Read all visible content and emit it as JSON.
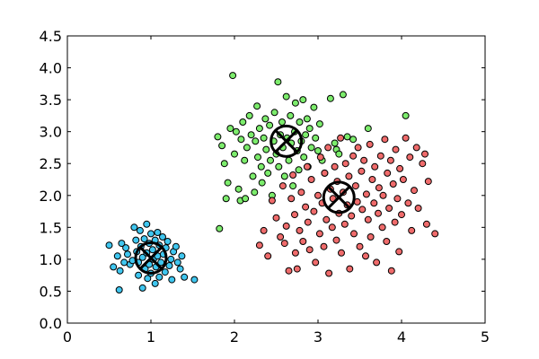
{
  "chart_data": {
    "type": "scatter",
    "title": "",
    "xlabel": "",
    "ylabel": "",
    "xlim": [
      0,
      5
    ],
    "ylim": [
      0,
      4.5
    ],
    "xticks": [
      0,
      1,
      2,
      3,
      4,
      5
    ],
    "xtick_labels": [
      "0",
      "1",
      "2",
      "3",
      "4",
      "5"
    ],
    "yticks": [
      0,
      0.5,
      1,
      1.5,
      2,
      2.5,
      3,
      3.5,
      4,
      4.5
    ],
    "ytick_labels": [
      "0.0",
      "0.5",
      "1.0",
      "1.5",
      "2.0",
      "2.5",
      "3.0",
      "3.5",
      "4.0",
      "4.5"
    ],
    "grid": false,
    "legend": false,
    "series": [
      {
        "color": "#3fc6ef",
        "centroid": [
          1.0,
          1.02
        ],
        "points": [
          [
            0.5,
            1.22
          ],
          [
            0.55,
            0.88
          ],
          [
            0.6,
            1.05
          ],
          [
            0.62,
            0.52
          ],
          [
            0.63,
            0.82
          ],
          [
            0.65,
            1.25
          ],
          [
            0.68,
            0.95
          ],
          [
            0.7,
            1.18
          ],
          [
            0.72,
            1.08
          ],
          [
            0.75,
            0.92
          ],
          [
            0.78,
            0.98
          ],
          [
            0.8,
            1.5
          ],
          [
            0.82,
            1.3
          ],
          [
            0.83,
            1.12
          ],
          [
            0.85,
            0.75
          ],
          [
            0.85,
            0.95
          ],
          [
            0.87,
            1.45
          ],
          [
            0.88,
            1.2
          ],
          [
            0.9,
            0.55
          ],
          [
            0.9,
            1.03
          ],
          [
            0.92,
            1.32
          ],
          [
            0.93,
            0.85
          ],
          [
            0.95,
            1.55
          ],
          [
            0.95,
            1.1
          ],
          [
            0.96,
            0.7
          ],
          [
            0.98,
            1.25
          ],
          [
            0.98,
            0.92
          ],
          [
            1.0,
            1.4
          ],
          [
            1.0,
            0.78
          ],
          [
            1.02,
            1.15
          ],
          [
            1.03,
            1.0
          ],
          [
            1.05,
            1.3
          ],
          [
            1.05,
            0.62
          ],
          [
            1.06,
            0.88
          ],
          [
            1.08,
            1.42
          ],
          [
            1.08,
            1.05
          ],
          [
            1.1,
            0.72
          ],
          [
            1.1,
            1.22
          ],
          [
            1.12,
            0.95
          ],
          [
            1.14,
            1.35
          ],
          [
            1.15,
            1.08
          ],
          [
            1.17,
            0.8
          ],
          [
            1.18,
            1.18
          ],
          [
            1.2,
            1.28
          ],
          [
            1.22,
            0.9
          ],
          [
            1.24,
            1.0
          ],
          [
            1.25,
            0.68
          ],
          [
            1.27,
            1.12
          ],
          [
            1.3,
            1.2
          ],
          [
            1.32,
            0.95
          ],
          [
            1.35,
            0.85
          ],
          [
            1.37,
            1.05
          ],
          [
            1.4,
            0.72
          ],
          [
            1.52,
            0.68
          ]
        ]
      },
      {
        "color": "#7cec6c",
        "centroid": [
          2.62,
          2.85
        ],
        "points": [
          [
            1.8,
            2.92
          ],
          [
            1.82,
            1.48
          ],
          [
            1.85,
            2.78
          ],
          [
            1.88,
            2.5
          ],
          [
            1.9,
            1.95
          ],
          [
            1.92,
            2.2
          ],
          [
            1.95,
            3.05
          ],
          [
            1.98,
            3.88
          ],
          [
            2.0,
            2.65
          ],
          [
            2.02,
            3.0
          ],
          [
            2.05,
            2.1
          ],
          [
            2.07,
            1.92
          ],
          [
            2.08,
            2.88
          ],
          [
            2.1,
            3.15
          ],
          [
            2.12,
            2.55
          ],
          [
            2.13,
            1.95
          ],
          [
            2.15,
            2.75
          ],
          [
            2.18,
            3.25
          ],
          [
            2.2,
            2.95
          ],
          [
            2.22,
            2.3
          ],
          [
            2.24,
            2.05
          ],
          [
            2.25,
            2.85
          ],
          [
            2.27,
            3.4
          ],
          [
            2.28,
            2.6
          ],
          [
            2.3,
            3.05
          ],
          [
            2.32,
            2.45
          ],
          [
            2.33,
            2.2
          ],
          [
            2.35,
            2.9
          ],
          [
            2.37,
            3.2
          ],
          [
            2.38,
            2.72
          ],
          [
            2.4,
            2.35
          ],
          [
            2.42,
            3.1
          ],
          [
            2.43,
            2.55
          ],
          [
            2.45,
            2.0
          ],
          [
            2.47,
            2.85
          ],
          [
            2.48,
            3.3
          ],
          [
            2.5,
            2.65
          ],
          [
            2.52,
            3.78
          ],
          [
            2.53,
            2.45
          ],
          [
            2.55,
            2.95
          ],
          [
            2.57,
            3.15
          ],
          [
            2.58,
            2.75
          ],
          [
            2.6,
            2.3
          ],
          [
            2.62,
            3.55
          ],
          [
            2.63,
            2.9
          ],
          [
            2.65,
            2.55
          ],
          [
            2.67,
            3.25
          ],
          [
            2.68,
            2.82
          ],
          [
            2.7,
            2.15
          ],
          [
            2.72,
            3.0
          ],
          [
            2.73,
            3.45
          ],
          [
            2.75,
            2.7
          ],
          [
            2.77,
            2.4
          ],
          [
            2.78,
            3.15
          ],
          [
            2.8,
            2.85
          ],
          [
            2.82,
            3.5
          ],
          [
            2.83,
            2.6
          ],
          [
            2.85,
            2.95
          ],
          [
            2.87,
            3.2
          ],
          [
            2.88,
            2.45
          ],
          [
            2.9,
            3.05
          ],
          [
            2.92,
            2.75
          ],
          [
            2.95,
            3.38
          ],
          [
            2.97,
            2.9
          ],
          [
            3.0,
            2.7
          ],
          [
            3.02,
            3.12
          ],
          [
            3.05,
            2.55
          ],
          [
            3.08,
            2.35
          ],
          [
            3.15,
            3.52
          ],
          [
            3.2,
            2.82
          ],
          [
            3.22,
            2.72
          ],
          [
            3.25,
            2.65
          ],
          [
            3.3,
            3.58
          ],
          [
            3.35,
            2.92
          ],
          [
            3.42,
            2.88
          ],
          [
            3.6,
            3.05
          ],
          [
            4.05,
            3.25
          ]
        ]
      },
      {
        "color": "#ef6b6b",
        "centroid": [
          3.25,
          1.97
        ],
        "points": [
          [
            2.3,
            1.22
          ],
          [
            2.35,
            1.45
          ],
          [
            2.4,
            1.05
          ],
          [
            2.45,
            1.92
          ],
          [
            2.5,
            1.65
          ],
          [
            2.55,
            1.35
          ],
          [
            2.58,
            2.15
          ],
          [
            2.6,
            1.25
          ],
          [
            2.62,
            1.52
          ],
          [
            2.65,
            0.82
          ],
          [
            2.68,
            1.95
          ],
          [
            2.7,
            2.32
          ],
          [
            2.72,
            1.7
          ],
          [
            2.73,
            1.1
          ],
          [
            2.75,
            0.85
          ],
          [
            2.78,
            1.45
          ],
          [
            2.8,
            2.05
          ],
          [
            2.82,
            1.28
          ],
          [
            2.85,
            1.82
          ],
          [
            2.87,
            2.45
          ],
          [
            2.88,
            1.58
          ],
          [
            2.9,
            1.15
          ],
          [
            2.92,
            2.25
          ],
          [
            2.95,
            1.75
          ],
          [
            2.97,
            0.95
          ],
          [
            3.0,
            2.0
          ],
          [
            3.02,
            1.4
          ],
          [
            3.03,
            2.6
          ],
          [
            3.05,
            1.88
          ],
          [
            3.07,
            1.2
          ],
          [
            3.08,
            2.35
          ],
          [
            3.1,
            1.62
          ],
          [
            3.12,
            2.75
          ],
          [
            3.13,
            0.78
          ],
          [
            3.15,
            2.1
          ],
          [
            3.17,
            1.5
          ],
          [
            3.18,
            1.95
          ],
          [
            3.2,
            2.45
          ],
          [
            3.22,
            1.3
          ],
          [
            3.23,
            2.22
          ],
          [
            3.25,
            1.72
          ],
          [
            3.27,
            2.9
          ],
          [
            3.28,
            1.1
          ],
          [
            3.3,
            2.05
          ],
          [
            3.32,
            1.55
          ],
          [
            3.33,
            2.5
          ],
          [
            3.35,
            1.85
          ],
          [
            3.37,
            2.3
          ],
          [
            3.38,
            0.85
          ],
          [
            3.4,
            1.68
          ],
          [
            3.42,
            2.62
          ],
          [
            3.43,
            1.4
          ],
          [
            3.45,
            2.15
          ],
          [
            3.47,
            1.9
          ],
          [
            3.48,
            2.75
          ],
          [
            3.5,
            1.2
          ],
          [
            3.52,
            2.38
          ],
          [
            3.53,
            1.78
          ],
          [
            3.55,
            2.55
          ],
          [
            3.57,
            1.05
          ],
          [
            3.58,
            2.02
          ],
          [
            3.6,
            1.62
          ],
          [
            3.62,
            2.8
          ],
          [
            3.63,
            1.35
          ],
          [
            3.65,
            2.25
          ],
          [
            3.67,
            1.88
          ],
          [
            3.68,
            2.45
          ],
          [
            3.7,
            0.95
          ],
          [
            3.72,
            1.72
          ],
          [
            3.73,
            2.12
          ],
          [
            3.75,
            2.62
          ],
          [
            3.77,
            1.5
          ],
          [
            3.78,
            2.0
          ],
          [
            3.8,
            2.88
          ],
          [
            3.82,
            1.28
          ],
          [
            3.83,
            2.35
          ],
          [
            3.85,
            1.8
          ],
          [
            3.87,
            2.55
          ],
          [
            3.88,
            0.82
          ],
          [
            3.9,
            2.18
          ],
          [
            3.92,
            1.58
          ],
          [
            3.93,
            2.72
          ],
          [
            3.95,
            1.95
          ],
          [
            3.97,
            1.12
          ],
          [
            3.98,
            2.42
          ],
          [
            4.0,
            1.7
          ],
          [
            4.02,
            2.25
          ],
          [
            4.05,
            2.9
          ],
          [
            4.08,
            1.88
          ],
          [
            4.1,
            2.6
          ],
          [
            4.12,
            1.45
          ],
          [
            4.15,
            2.08
          ],
          [
            4.18,
            2.75
          ],
          [
            4.2,
            1.8
          ],
          [
            4.25,
            2.5
          ],
          [
            4.28,
            2.65
          ],
          [
            4.3,
            1.55
          ],
          [
            4.32,
            2.22
          ],
          [
            4.4,
            1.4
          ]
        ]
      }
    ]
  }
}
